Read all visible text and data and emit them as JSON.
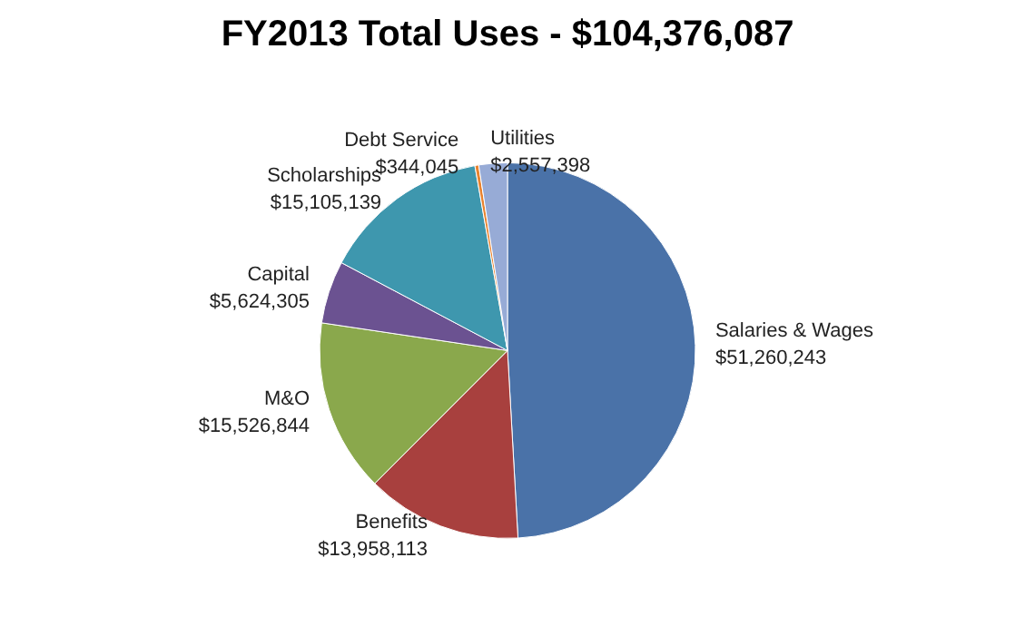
{
  "chart_data": {
    "type": "pie",
    "title": "FY2013 Total Uses - $104,376,087",
    "categories": [
      "Salaries & Wages",
      "Benefits",
      "M&O",
      "Capital",
      "Scholarships",
      "Debt Service",
      "Utilities"
    ],
    "values": [
      51260243,
      13958113,
      15526844,
      5624305,
      15105139,
      344045,
      2557398
    ],
    "value_labels": [
      "$51,260,243",
      "$13,958,113",
      "$15,526,844",
      "$5,624,305",
      "$15,105,139",
      "$344,045",
      "$2,557,398"
    ],
    "colors": [
      "#4a72a8",
      "#a8403e",
      "#8aa84c",
      "#6b5291",
      "#3e97ae",
      "#e8832f",
      "#97abd6"
    ],
    "legend": false
  }
}
